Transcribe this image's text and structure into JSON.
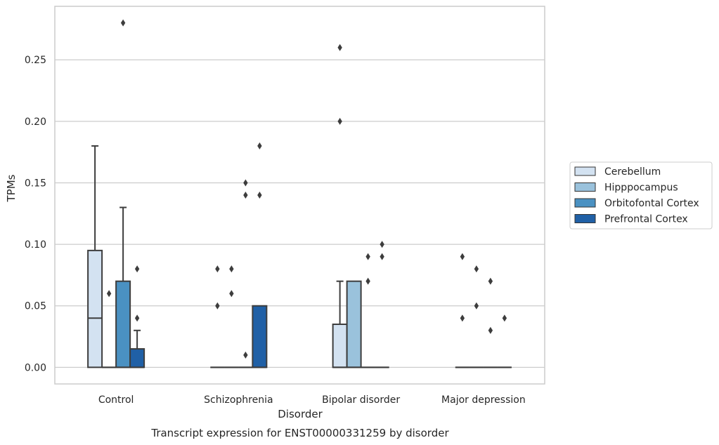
{
  "chart_data": {
    "type": "box",
    "title": "",
    "caption": "Transcript expression for ENST00000331259 by disorder",
    "xlabel": "Disorder",
    "ylabel": "TPMs",
    "ylim": [
      -0.0135,
      0.2935
    ],
    "yticks": [
      "0.00",
      "0.05",
      "0.10",
      "0.15",
      "0.20",
      "0.25"
    ],
    "grid": "horizontal",
    "legend_position": "right",
    "categories": [
      "Control",
      "Schizophrenia",
      "Bipolar disorder",
      "Major depression"
    ],
    "series": [
      {
        "name": "Cerebellum",
        "color": "#d3e2f1",
        "boxes": [
          {
            "q1": 0.0,
            "median": 0.04,
            "q3": 0.095,
            "whislo": 0.0,
            "whishi": 0.18,
            "fliers": []
          },
          {
            "q1": 0.0,
            "median": 0.0,
            "q3": 0.0,
            "whislo": 0.0,
            "whishi": 0.0,
            "fliers": [
              0.05,
              0.08
            ]
          },
          {
            "q1": 0.0,
            "median": 0.0,
            "q3": 0.035,
            "whislo": 0.0,
            "whishi": 0.07,
            "fliers": [
              0.2,
              0.26
            ]
          },
          {
            "q1": 0.0,
            "median": 0.0,
            "q3": 0.0,
            "whislo": 0.0,
            "whishi": 0.0,
            "fliers": [
              0.04,
              0.09
            ]
          }
        ]
      },
      {
        "name": "Hipppocampus",
        "color": "#9ac2dc",
        "boxes": [
          {
            "q1": 0.0,
            "median": 0.0,
            "q3": 0.0,
            "whislo": 0.0,
            "whishi": 0.0,
            "fliers": [
              0.06
            ]
          },
          {
            "q1": 0.0,
            "median": 0.0,
            "q3": 0.0,
            "whislo": 0.0,
            "whishi": 0.0,
            "fliers": [
              0.06,
              0.08
            ]
          },
          {
            "q1": 0.0,
            "median": 0.0,
            "q3": 0.07,
            "whislo": 0.0,
            "whishi": 0.07,
            "fliers": []
          },
          {
            "q1": 0.0,
            "median": 0.0,
            "q3": 0.0,
            "whislo": 0.0,
            "whishi": 0.0,
            "fliers": [
              0.05,
              0.08
            ]
          }
        ]
      },
      {
        "name": "Orbitofontal Cortex",
        "color": "#4a91c2",
        "boxes": [
          {
            "q1": 0.0,
            "median": 0.0,
            "q3": 0.07,
            "whislo": 0.0,
            "whishi": 0.13,
            "fliers": [
              0.28
            ]
          },
          {
            "q1": 0.0,
            "median": 0.0,
            "q3": 0.0,
            "whislo": 0.0,
            "whishi": 0.0,
            "fliers": [
              0.01,
              0.14,
              0.15
            ]
          },
          {
            "q1": 0.0,
            "median": 0.0,
            "q3": 0.0,
            "whislo": 0.0,
            "whishi": 0.0,
            "fliers": [
              0.07,
              0.09
            ]
          },
          {
            "q1": 0.0,
            "median": 0.0,
            "q3": 0.0,
            "whislo": 0.0,
            "whishi": 0.0,
            "fliers": [
              0.03,
              0.07
            ]
          }
        ]
      },
      {
        "name": "Prefrontal Cortex",
        "color": "#2060a6",
        "boxes": [
          {
            "q1": 0.0,
            "median": 0.0,
            "q3": 0.015,
            "whislo": 0.0,
            "whishi": 0.03,
            "fliers": [
              0.04,
              0.08
            ]
          },
          {
            "q1": 0.0,
            "median": 0.0,
            "q3": 0.05,
            "whislo": 0.0,
            "whishi": 0.05,
            "fliers": [
              0.14,
              0.18
            ]
          },
          {
            "q1": 0.0,
            "median": 0.0,
            "q3": 0.0,
            "whislo": 0.0,
            "whishi": 0.0,
            "fliers": [
              0.09,
              0.1
            ]
          },
          {
            "q1": 0.0,
            "median": 0.0,
            "q3": 0.0,
            "whislo": 0.0,
            "whishi": 0.0,
            "fliers": [
              0.04
            ]
          }
        ]
      }
    ]
  },
  "colors": {
    "box_edge": "#3d3d3d",
    "grid": "#cccccc",
    "frame": "#cccccc",
    "text": "#262626"
  }
}
